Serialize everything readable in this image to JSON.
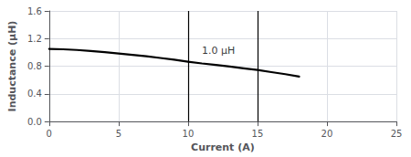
{
  "chart_data": {
    "type": "line",
    "xlabel": "Current (A)",
    "ylabel": "Inductance (μH)",
    "x": [
      0,
      1,
      2,
      3,
      4,
      5,
      6,
      7,
      8,
      9,
      10,
      11,
      12,
      13,
      14,
      15,
      16,
      17,
      18
    ],
    "values": [
      1.05,
      1.045,
      1.035,
      1.02,
      1.005,
      0.985,
      0.965,
      0.945,
      0.92,
      0.895,
      0.865,
      0.84,
      0.82,
      0.795,
      0.77,
      0.745,
      0.715,
      0.685,
      0.65
    ],
    "color": "#000000",
    "xlim": [
      0,
      25
    ],
    "ylim": [
      0,
      1.6
    ],
    "xticks": [
      0,
      5,
      10,
      15,
      20,
      25
    ],
    "yticks": [
      {
        "value": 0,
        "label": "0.0"
      },
      0.4,
      0.8,
      1.2,
      1.6
    ],
    "vlines": [
      10,
      15
    ],
    "annotations": [
      {
        "text": "1.0 μH",
        "x": 11.0,
        "y": 0.95
      }
    ],
    "grid": true
  }
}
